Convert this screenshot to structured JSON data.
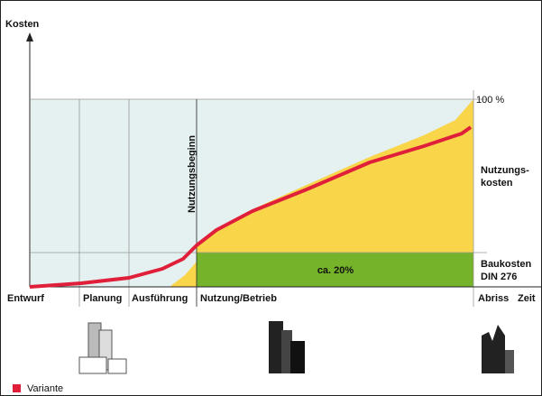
{
  "axis": {
    "y_label": "Kosten",
    "top_label": "100 %",
    "time_label": "Zeit"
  },
  "markers": {
    "usage_start": "Nutzungsbeginn",
    "share": "ca. 20%"
  },
  "areas": {
    "usage_costs": [
      "Nutzungs-",
      "kosten"
    ],
    "building_costs": [
      "Baukosten",
      "DIN 276"
    ]
  },
  "phases": [
    "Entwurf",
    "Planung",
    "Ausführung",
    "Nutzung/Betrieb",
    "Abriss"
  ],
  "legend": {
    "label": "Variante"
  }
}
